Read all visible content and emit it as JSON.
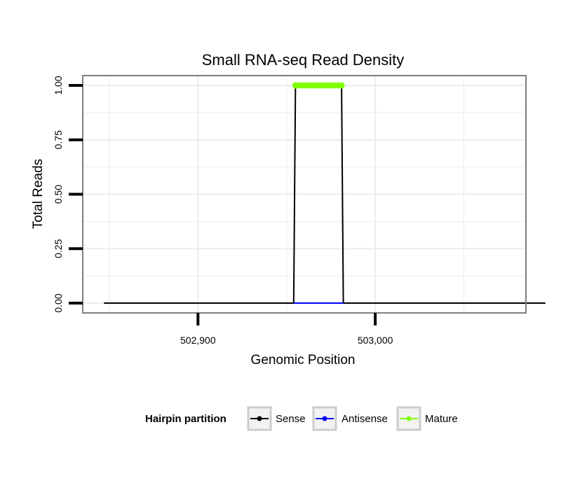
{
  "chart_data": {
    "type": "line",
    "title": "Small RNA-seq Read Density",
    "xlabel": "Genomic Position",
    "ylabel": "Total Reads",
    "xlim": [
      502835,
      503085
    ],
    "ylim": [
      -0.045,
      1.045
    ],
    "x_ticks": [
      {
        "value": 502900,
        "label": "502,900"
      },
      {
        "value": 503000,
        "label": "503,000"
      }
    ],
    "y_ticks": [
      {
        "value": 0.0,
        "label": "0.00"
      },
      {
        "value": 0.25,
        "label": "0.25"
      },
      {
        "value": 0.5,
        "label": "0.50"
      },
      {
        "value": 0.75,
        "label": "0.75"
      },
      {
        "value": 1.0,
        "label": "1.00"
      }
    ],
    "grid": true,
    "legend": {
      "title": "Hairpin partition",
      "placement": "bottom",
      "entries": [
        "Sense",
        "Antisense",
        "Mature"
      ]
    },
    "series": [
      {
        "name": "Sense",
        "color": "#000000",
        "x": [
          502847,
          502954,
          502955,
          502981,
          502982,
          503096
        ],
        "y": [
          0,
          0,
          1,
          1,
          0,
          0
        ]
      },
      {
        "name": "Antisense",
        "color": "#0000ff",
        "x": [
          502954,
          502982
        ],
        "y": [
          0,
          0
        ]
      },
      {
        "name": "Mature",
        "color": "#7fff00",
        "x": [
          502955,
          502957,
          502959,
          502961,
          502963,
          502965,
          502967,
          502969,
          502971,
          502973,
          502975,
          502977,
          502979,
          502981
        ],
        "y": [
          1,
          1,
          1,
          1,
          1,
          1,
          1,
          1,
          1,
          1,
          1,
          1,
          1,
          1
        ]
      }
    ]
  }
}
